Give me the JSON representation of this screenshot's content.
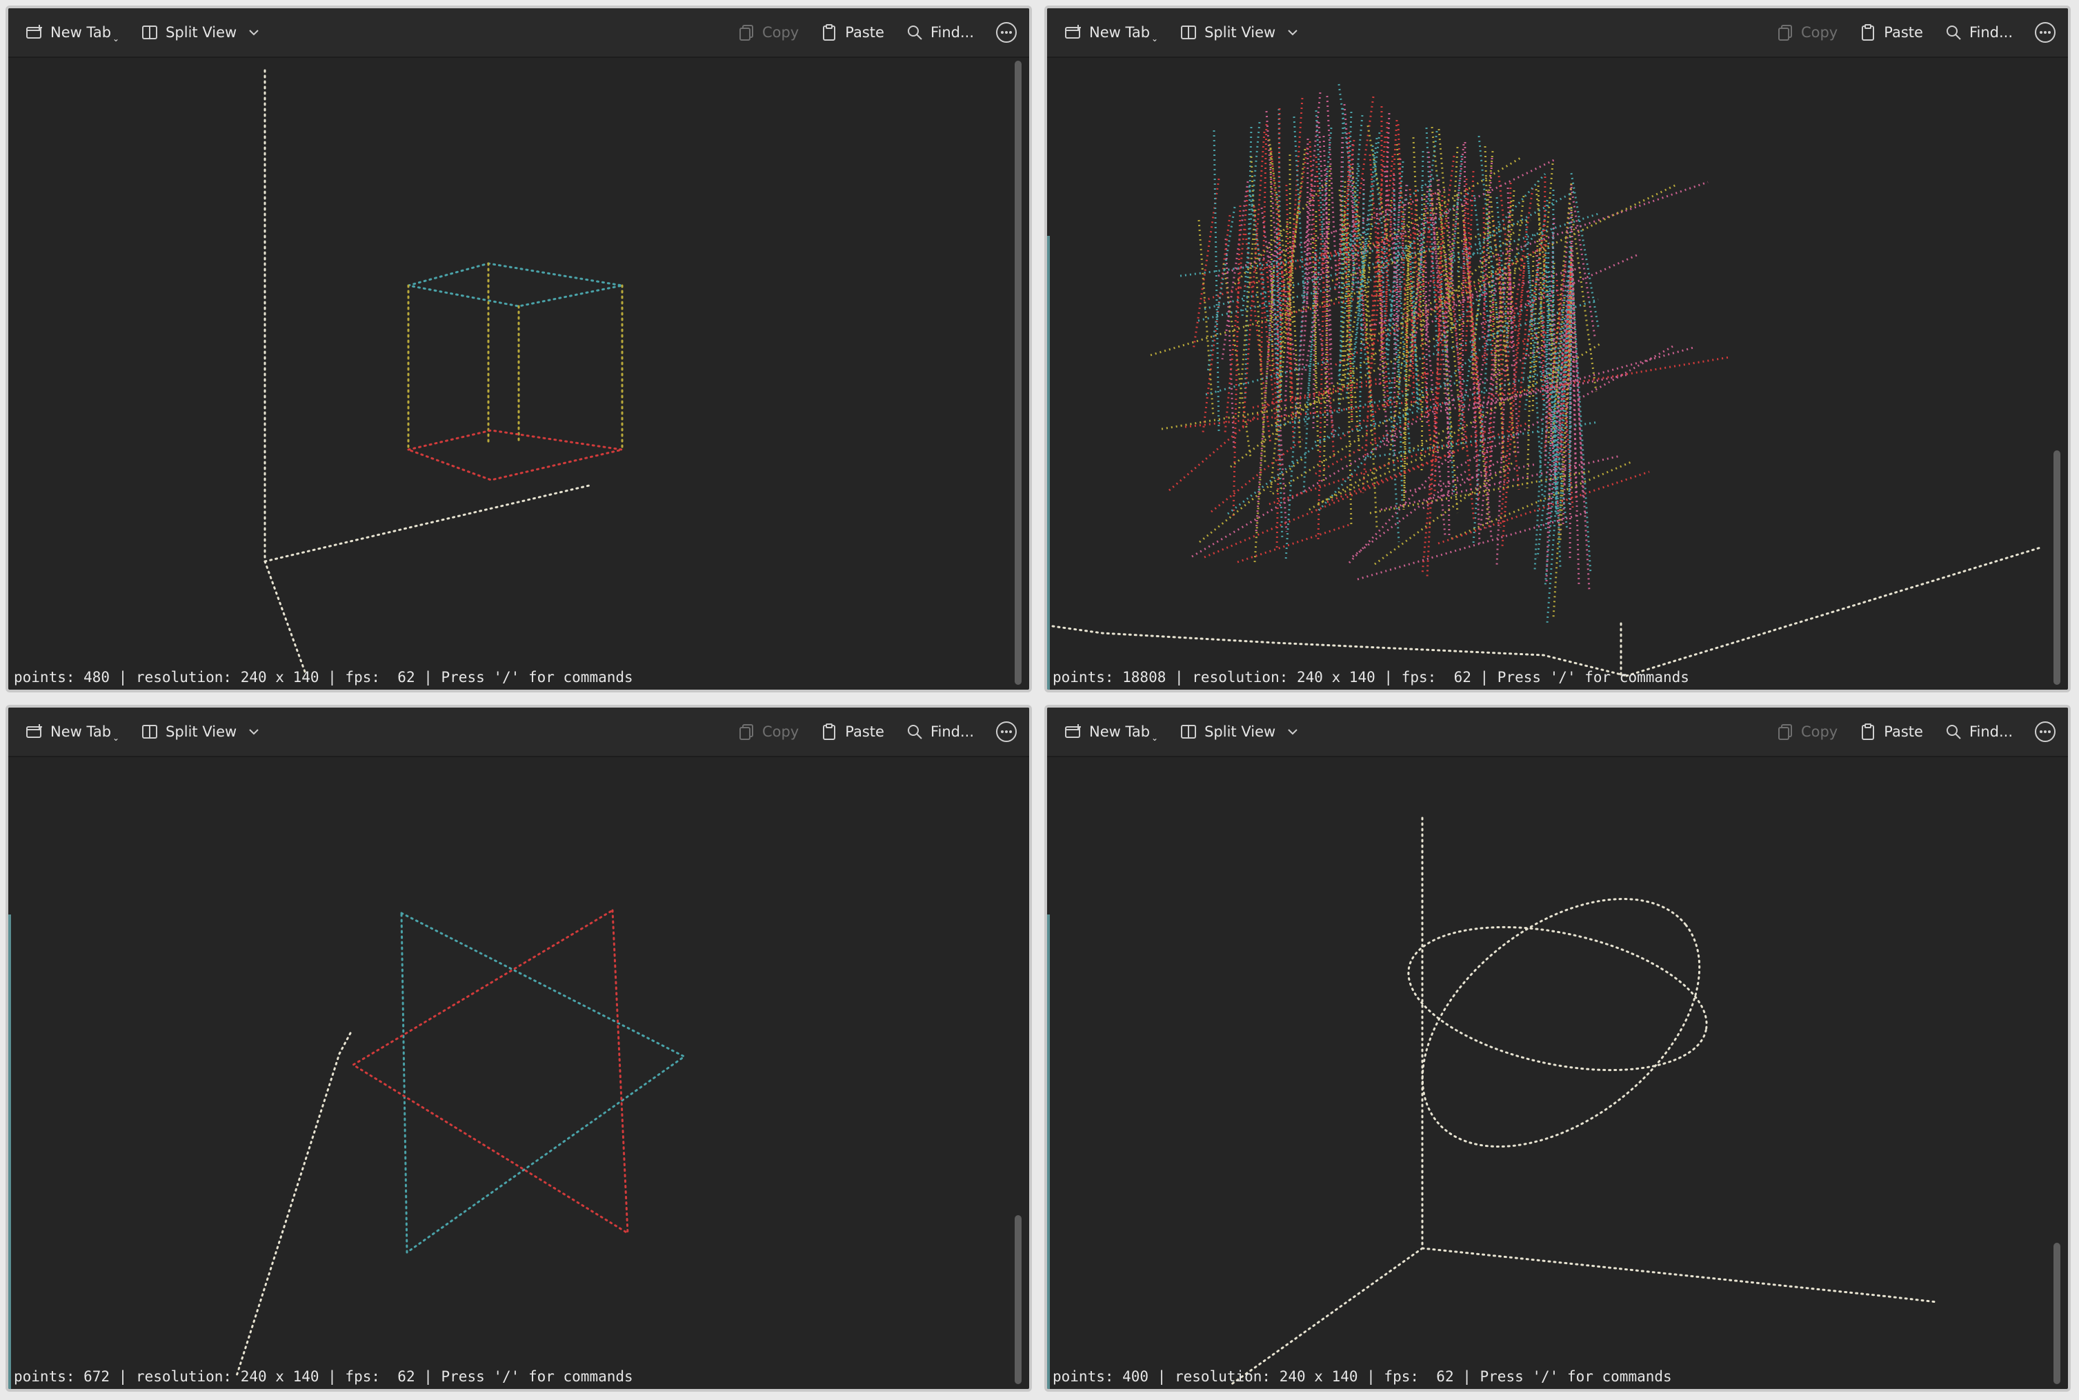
{
  "toolbar": {
    "new_tab": "New Tab",
    "split_view": "Split View",
    "copy": "Copy",
    "paste": "Paste",
    "find": "Find..."
  },
  "colors": {
    "background": "#252525",
    "toolbar": "#2a2a2a",
    "text": "#e6e6e6",
    "disabled": "#6f6f6f",
    "dot_white": "#e8e4d2",
    "dot_teal": "#4aa3a9",
    "dot_yellow": "#b9a93a",
    "dot_red": "#d23b3b",
    "dot_pink": "#c9608f"
  },
  "panes": [
    {
      "status": "points: 480 | resolution: 240 x 140 | fps:  62 | Press '/' for commands",
      "scene": "wire-cube"
    },
    {
      "status": "points: 18808 | resolution: 240 x 140 | fps:  62 | Press '/' for commands",
      "scene": "dense-surface"
    },
    {
      "status": "points: 672 | resolution: 240 x 140 | fps:  62 | Press '/' for commands",
      "scene": "star-of-david"
    },
    {
      "status": "points: 400 | resolution: 240 x 140 | fps:  62 | Press '/' for commands",
      "scene": "lissajous-curve"
    }
  ]
}
